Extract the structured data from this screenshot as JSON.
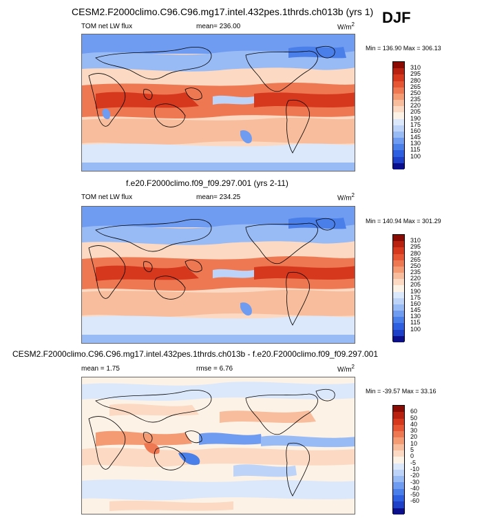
{
  "season": "DJF",
  "colors": {
    "abs_scale": [
      "#0b0f8c",
      "#1e3fc8",
      "#2e5fe0",
      "#4a7fea",
      "#6f9cf0",
      "#98baf5",
      "#bdd4f8",
      "#dbe8fb",
      "#fdf2e6",
      "#fbd9c2",
      "#f8bd9c",
      "#f49b74",
      "#ee7852",
      "#e65635",
      "#d6381e",
      "#b8200f",
      "#8a0a04"
    ],
    "diff_scale": [
      "#0b0f8c",
      "#1e3fc8",
      "#2e5fe0",
      "#4a7fea",
      "#6f9cf0",
      "#98baf5",
      "#bdd4f8",
      "#dbe8fb",
      "#fdf2e6",
      "#fbd9c2",
      "#f8bd9c",
      "#f49b74",
      "#ee7852",
      "#e65635",
      "#d6381e",
      "#b8200f",
      "#8a0a04"
    ]
  },
  "panels": [
    {
      "title": "CESM2.F2000climo.C96.C96.mg17.intel.432pes.1thrds.ch013b (yrs 1)",
      "left_label": "TOM net LW flux",
      "center_label": "mean= 236.00",
      "units": "W/m",
      "units_exp": "2",
      "minmax": "Min = 136.90 Max = 306.13",
      "colorbar_ticks": [
        "310",
        "295",
        "280",
        "265",
        "250",
        "235",
        "220",
        "205",
        "190",
        "175",
        "160",
        "145",
        "130",
        "115",
        "100"
      ]
    },
    {
      "title": "f.e20.F2000climo.f09_f09.297.001 (yrs 2-11)",
      "left_label": "TOM net LW flux",
      "center_label": "mean= 234.25",
      "units": "W/m",
      "units_exp": "2",
      "minmax": "Min = 140.94 Max = 301.29",
      "colorbar_ticks": [
        "310",
        "295",
        "280",
        "265",
        "250",
        "235",
        "220",
        "205",
        "190",
        "175",
        "160",
        "145",
        "130",
        "115",
        "100"
      ]
    },
    {
      "title": "CESM2.F2000climo.C96.C96.mg17.intel.432pes.1thrds.ch013b - f.e20.F2000climo.f09_f09.297.001",
      "left_label": "mean =   1.75",
      "center_label": "rmse =   6.76",
      "units": "W/m",
      "units_exp": "2",
      "minmax": "Min = -39.57 Max =  33.16",
      "colorbar_ticks": [
        "60",
        "50",
        "40",
        "30",
        "20",
        "10",
        "5",
        "0",
        "-5",
        "-10",
        "-20",
        "-30",
        "-40",
        "-50",
        "-60"
      ]
    }
  ],
  "chart_data": [
    {
      "type": "heatmap",
      "title": "CESM2.F2000climo.C96.C96.mg17.intel.432pes.1thrds.ch013b (yrs 1)",
      "variable": "TOM net LW flux",
      "units": "W/m2",
      "mean": 236.0,
      "min": 136.9,
      "max": 306.13,
      "levels": [
        100,
        115,
        130,
        145,
        160,
        175,
        190,
        205,
        220,
        235,
        250,
        265,
        280,
        295,
        310
      ]
    },
    {
      "type": "heatmap",
      "title": "f.e20.F2000climo.f09_f09.297.001 (yrs 2-11)",
      "variable": "TOM net LW flux",
      "units": "W/m2",
      "mean": 234.25,
      "min": 140.94,
      "max": 301.29,
      "levels": [
        100,
        115,
        130,
        145,
        160,
        175,
        190,
        205,
        220,
        235,
        250,
        265,
        280,
        295,
        310
      ]
    },
    {
      "type": "heatmap",
      "title": "CESM2.F2000climo.C96.C96.mg17.intel.432pes.1thrds.ch013b - f.e20.F2000climo.f09_f09.297.001",
      "units": "W/m2",
      "mean": 1.75,
      "rmse": 6.76,
      "min": -39.57,
      "max": 33.16,
      "levels": [
        -60,
        -50,
        -40,
        -30,
        -20,
        -10,
        -5,
        0,
        5,
        10,
        20,
        30,
        40,
        50,
        60
      ]
    }
  ]
}
